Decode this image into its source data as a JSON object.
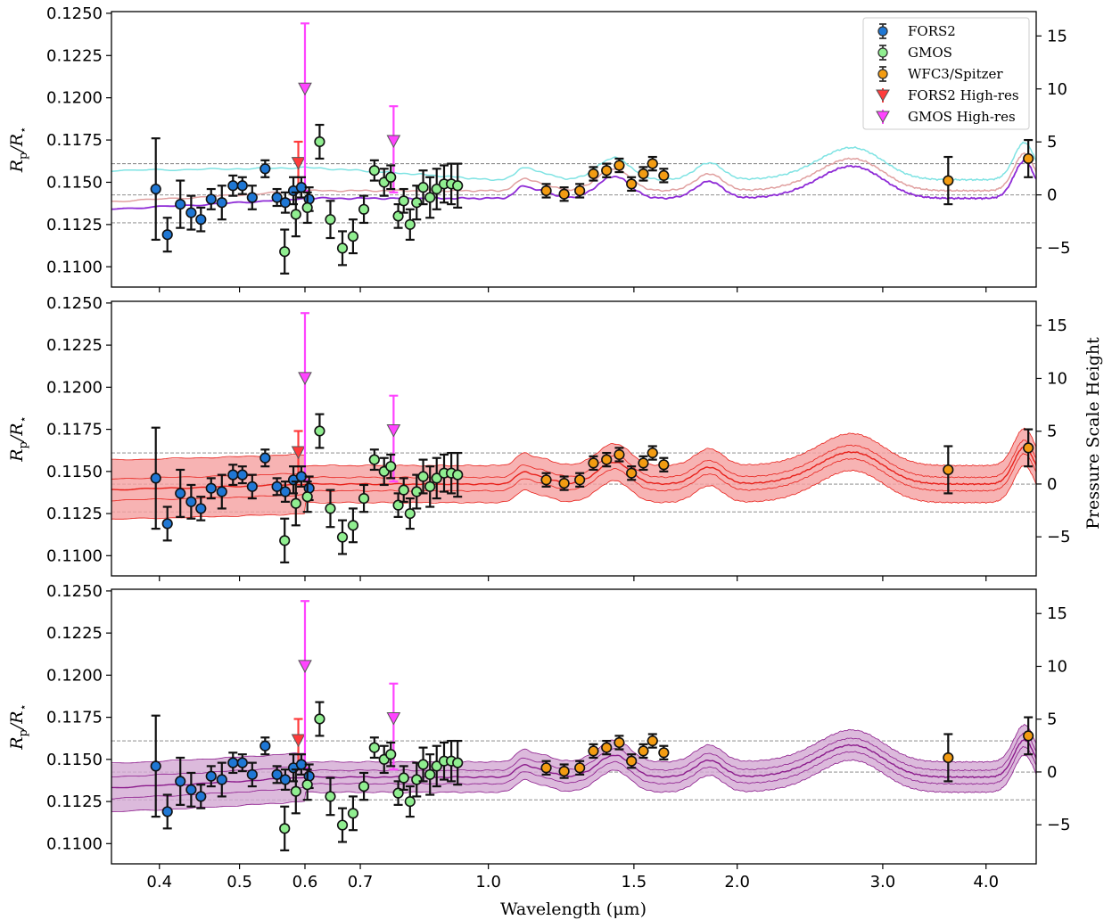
{
  "figure": {
    "xlabel": "Wavelength (μm)",
    "ylabel_main": "R",
    "ylabel_sub_p": "p",
    "ylabel_slash": "/R",
    "ylabel_sub_star": "⋆",
    "y2label": "Pressure Scale Height"
  },
  "chart_data": [
    {
      "type": "scatter",
      "panel": 1,
      "xscale": "log",
      "xlim": [
        0.35,
        4.6
      ],
      "ylim": [
        0.1088,
        0.1251
      ],
      "y2lim": [
        -8.7,
        17.3
      ],
      "xticks": [
        0.4,
        0.5,
        0.6,
        0.7,
        1.0,
        1.5,
        2.0,
        3.0,
        4.0
      ],
      "xticklabels": [
        "0.4",
        "0.5",
        "0.6",
        "0.7",
        "1.0",
        "1.5",
        "2.0",
        "3.0",
        "4.0"
      ],
      "yticks": [
        0.11,
        0.1125,
        0.115,
        0.1175,
        0.12,
        0.1225,
        0.125
      ],
      "yticklabels": [
        "0.1100",
        "0.1125",
        "0.1150",
        "0.1175",
        "0.1200",
        "0.1225",
        "0.1250"
      ],
      "y2ticks": [
        -5,
        0,
        5,
        10,
        15
      ],
      "y2ticklabels": [
        "−5",
        "0",
        "5",
        "10",
        "15"
      ],
      "hlines": [
        0.1126,
        0.11425,
        0.1161
      ],
      "grid": false,
      "legend": {
        "placement": "top-right",
        "entries": [
          "FORS2",
          "GMOS",
          "WFC3/Spitzer",
          "FORS2 High-res",
          "GMOS High-res"
        ]
      },
      "models": "lines"
    },
    {
      "type": "scatter",
      "panel": 2,
      "xscale": "log",
      "xlim": [
        0.35,
        4.6
      ],
      "ylim": [
        0.1088,
        0.1251
      ],
      "y2lim": [
        -8.7,
        17.3
      ],
      "xticks": [
        0.4,
        0.5,
        0.6,
        0.7,
        1.0,
        1.5,
        2.0,
        3.0,
        4.0
      ],
      "yticks": [
        0.11,
        0.1125,
        0.115,
        0.1175,
        0.12,
        0.1225,
        0.125
      ],
      "yticklabels": [
        "0.1100",
        "0.1125",
        "0.1150",
        "0.1175",
        "0.1200",
        "0.1225",
        "0.1250"
      ],
      "y2ticks": [
        -5,
        0,
        5,
        10,
        15
      ],
      "y2ticklabels": [
        "−5",
        "0",
        "5",
        "10",
        "15"
      ],
      "hlines": [
        0.1126,
        0.11425,
        0.1161
      ],
      "grid": false,
      "models": "red-band"
    },
    {
      "type": "scatter",
      "panel": 3,
      "xscale": "log",
      "xlim": [
        0.35,
        4.6
      ],
      "ylim": [
        0.1088,
        0.1251
      ],
      "y2lim": [
        -8.7,
        17.3
      ],
      "xticks": [
        0.4,
        0.5,
        0.6,
        0.7,
        1.0,
        1.5,
        2.0,
        3.0,
        4.0
      ],
      "xticklabels": [
        "0.4",
        "0.5",
        "0.6",
        "0.7",
        "1.0",
        "1.5",
        "2.0",
        "3.0",
        "4.0"
      ],
      "yticks": [
        0.11,
        0.1125,
        0.115,
        0.1175,
        0.12,
        0.1225,
        0.125
      ],
      "yticklabels": [
        "0.1100",
        "0.1125",
        "0.1150",
        "0.1175",
        "0.1200",
        "0.1225",
        "0.1250"
      ],
      "y2ticks": [
        -5,
        0,
        5,
        10,
        15
      ],
      "y2ticklabels": [
        "−5",
        "0",
        "5",
        "10",
        "15"
      ],
      "hlines": [
        0.1126,
        0.11425,
        0.1161
      ],
      "grid": false,
      "models": "purple-band"
    }
  ],
  "series": {
    "FORS2": {
      "color": "#1f77d4",
      "x": [
        0.396,
        0.409,
        0.424,
        0.437,
        0.449,
        0.462,
        0.476,
        0.491,
        0.504,
        0.518,
        0.537,
        0.555,
        0.568,
        0.581,
        0.594,
        0.607
      ],
      "y": [
        0.1146,
        0.1119,
        0.1137,
        0.1132,
        0.1128,
        0.114,
        0.1138,
        0.1148,
        0.1148,
        0.1141,
        0.1158,
        0.1141,
        0.1138,
        0.1145,
        0.1147,
        0.114
      ],
      "err": [
        0.003,
        0.001,
        0.0014,
        0.001,
        0.0007,
        0.0006,
        0.001,
        0.0006,
        0.0005,
        0.0007,
        0.0005,
        0.0005,
        0.0006,
        0.0008,
        0.0006,
        0.0007
      ]
    },
    "GMOS": {
      "color": "#90ee90",
      "x": [
        0.567,
        0.585,
        0.604,
        0.625,
        0.644,
        0.666,
        0.686,
        0.707,
        0.728,
        0.748,
        0.762,
        0.778,
        0.79,
        0.804,
        0.819,
        0.834,
        0.85,
        0.866,
        0.884,
        0.902,
        0.918
      ],
      "y": [
        0.1109,
        0.1131,
        0.1135,
        0.1174,
        0.1128,
        0.1111,
        0.1118,
        0.1134,
        0.1157,
        0.115,
        0.1153,
        0.113,
        0.1139,
        0.1125,
        0.1138,
        0.1147,
        0.1141,
        0.1146,
        0.1149,
        0.1149,
        0.1148
      ],
      "err": [
        0.0013,
        0.0013,
        0.0009,
        0.001,
        0.0011,
        0.001,
        0.001,
        0.0008,
        0.0006,
        0.0008,
        0.0007,
        0.0007,
        0.0007,
        0.0009,
        0.001,
        0.001,
        0.0012,
        0.0012,
        0.0011,
        0.0012,
        0.0013
      ]
    },
    "WFC3/Spitzer": {
      "color": "#f39c12",
      "x": [
        1.175,
        1.235,
        1.29,
        1.34,
        1.39,
        1.44,
        1.49,
        1.54,
        1.58,
        1.63,
        3.6,
        4.5
      ],
      "y": [
        0.1145,
        0.1143,
        0.1145,
        0.1155,
        0.1157,
        0.116,
        0.1149,
        0.1155,
        0.1161,
        0.1154,
        0.1151,
        0.1164
      ],
      "err": [
        0.0004,
        0.0004,
        0.0004,
        0.0004,
        0.0004,
        0.0004,
        0.0004,
        0.0004,
        0.0004,
        0.0004,
        0.0014,
        0.0011
      ]
    },
    "FORS2 High-res": {
      "color": "#ff3b3b",
      "x": [
        0.589
      ],
      "y": [
        0.1161
      ],
      "err_low": [
        0.0015
      ],
      "err_high": [
        0.0013
      ]
    },
    "GMOS High-res": {
      "color": "#ff44ff",
      "x": [
        0.6,
        0.768
      ],
      "y": [
        0.1205,
        0.1174
      ],
      "err_low": [
        0.006,
        0.003
      ],
      "err_high": [
        0.0039,
        0.0021
      ]
    }
  }
}
